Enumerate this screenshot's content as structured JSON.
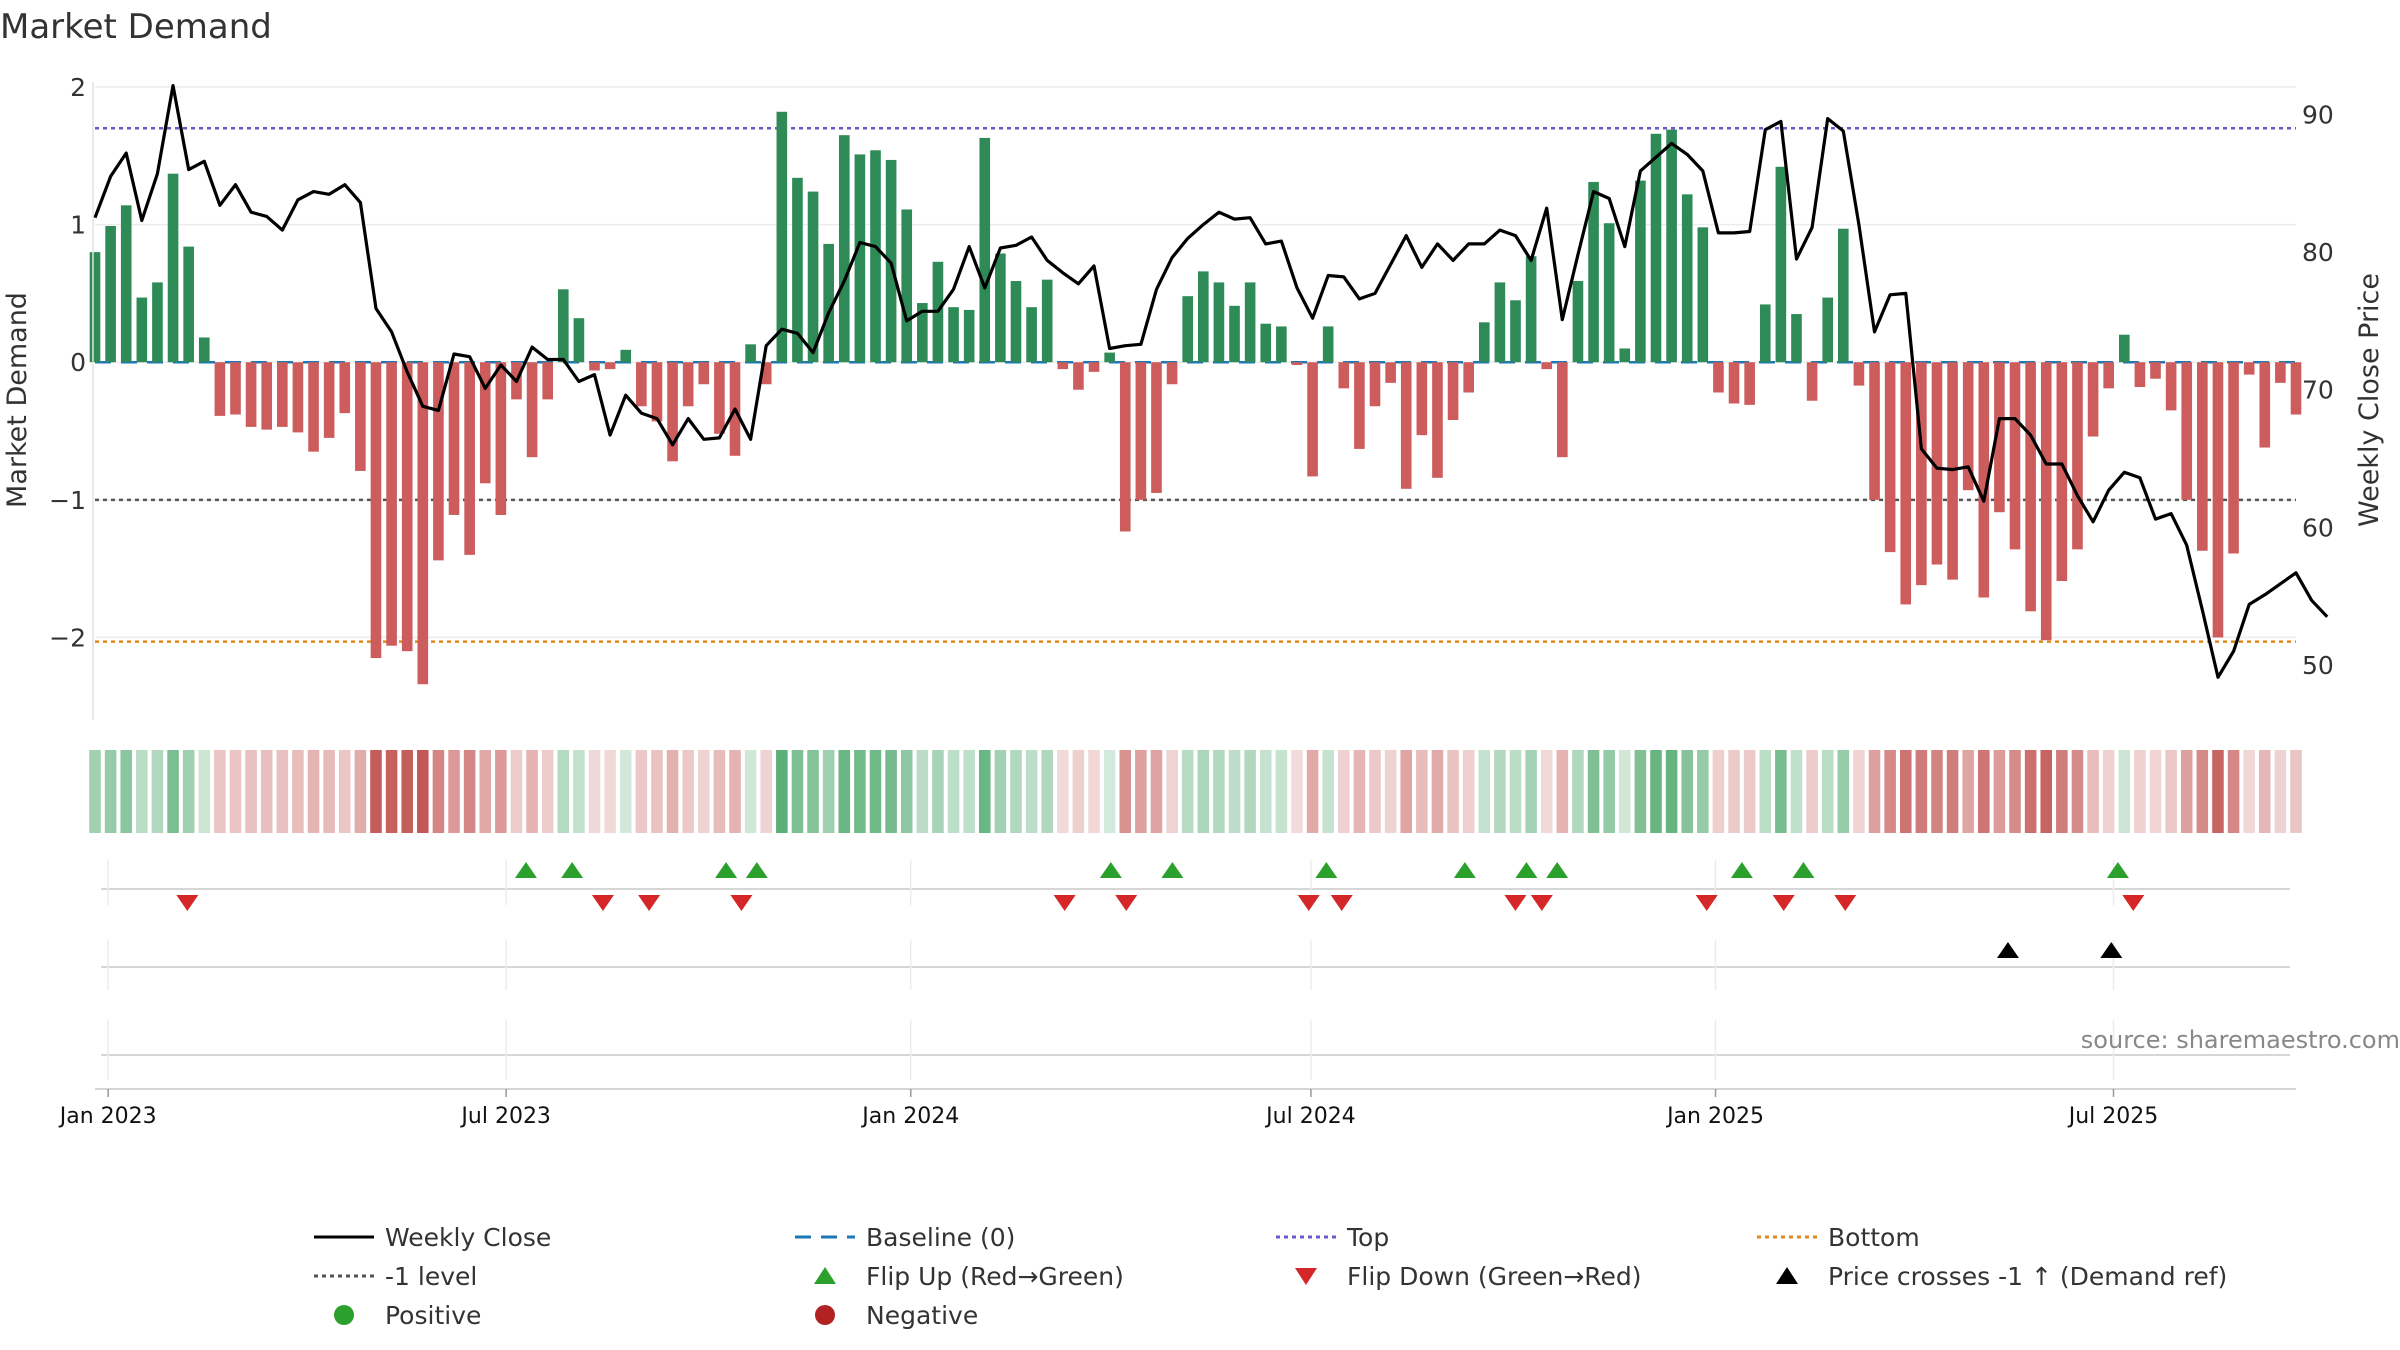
{
  "chart_data": {
    "type": "bar",
    "title": "Market Demand",
    "ylabel_left": "Market Demand",
    "ylabel_right": "Weekly Close Price",
    "ylim_left": [
      -2.6,
      2.0
    ],
    "ylim_right": [
      46,
      92
    ],
    "left_ticks": [
      2,
      1,
      0,
      -1,
      -2
    ],
    "left_tick_labels": [
      "2",
      "1",
      "0",
      "−1",
      "−2"
    ],
    "right_ticks": [
      90,
      80,
      70,
      60,
      50
    ],
    "right_tick_labels": [
      "90",
      "80",
      "70",
      "60",
      "50"
    ],
    "x_start_date": "2022-12-26",
    "x_end_date": "2025-09-22",
    "x_ticks": [
      {
        "date": "2023-01-01",
        "label": "Jan 2023"
      },
      {
        "date": "2023-07-01",
        "label": "Jul 2023"
      },
      {
        "date": "2024-01-01",
        "label": "Jan 2024"
      },
      {
        "date": "2024-07-01",
        "label": "Jul 2024"
      },
      {
        "date": "2025-01-01",
        "label": "Jan 2025"
      },
      {
        "date": "2025-07-01",
        "label": "Jul 2025"
      }
    ],
    "reference_lines": {
      "top": 1.7,
      "level_minus1": -1.0,
      "bottom": -2.03,
      "baseline": 0
    },
    "bars": [
      0.8,
      0.99,
      1.14,
      0.47,
      0.58,
      1.37,
      0.84,
      0.18,
      -0.39,
      -0.38,
      -0.47,
      -0.49,
      -0.47,
      -0.51,
      -0.65,
      -0.55,
      -0.37,
      -0.79,
      -2.15,
      -2.06,
      -2.1,
      -2.34,
      -1.44,
      -1.11,
      -1.4,
      -0.88,
      -1.11,
      -0.27,
      -0.69,
      -0.27,
      0.53,
      0.32,
      -0.06,
      -0.05,
      0.09,
      -0.32,
      -0.43,
      -0.72,
      -0.32,
      -0.16,
      -0.52,
      -0.68,
      0.13,
      -0.16,
      1.82,
      1.34,
      1.24,
      0.86,
      1.65,
      1.51,
      1.54,
      1.47,
      1.11,
      0.43,
      0.73,
      0.4,
      0.38,
      1.63,
      0.79,
      0.59,
      0.4,
      0.6,
      -0.05,
      -0.2,
      -0.07,
      0.07,
      -1.23,
      -1.0,
      -0.95,
      -0.16,
      0.48,
      0.66,
      0.58,
      0.41,
      0.58,
      0.28,
      0.26,
      -0.02,
      -0.83,
      0.26,
      -0.19,
      -0.63,
      -0.32,
      -0.15,
      -0.92,
      -0.53,
      -0.84,
      -0.42,
      -0.22,
      0.29,
      0.58,
      0.45,
      0.77,
      -0.05,
      -0.69,
      0.59,
      1.31,
      1.01,
      0.1,
      1.32,
      1.66,
      1.69,
      1.22,
      0.98,
      -0.22,
      -0.3,
      -0.31,
      0.42,
      1.42,
      0.35,
      -0.28,
      0.47,
      0.97,
      -0.17,
      -1.0,
      -1.38,
      -1.76,
      -1.62,
      -1.47,
      -1.58,
      -0.93,
      -1.71,
      -1.09,
      -1.36,
      -1.81,
      -2.02,
      -1.59,
      -1.36,
      -0.54,
      -0.19,
      0.2,
      -0.18,
      -0.12,
      -0.35,
      -1.0,
      -1.37,
      -2.0,
      -1.39,
      -0.09,
      -0.62,
      -0.15,
      -0.38
    ],
    "close": [
      82.5,
      85.5,
      87.2,
      82.3,
      85.7,
      92.1,
      86.0,
      86.6,
      83.4,
      84.9,
      82.9,
      82.6,
      81.6,
      83.8,
      84.4,
      84.2,
      84.9,
      83.6,
      75.9,
      74.2,
      71.3,
      68.8,
      68.5,
      72.6,
      72.4,
      70.1,
      71.8,
      70.6,
      73.1,
      72.2,
      72.2,
      70.6,
      71.1,
      66.7,
      69.6,
      68.3,
      67.9,
      66.0,
      67.9,
      66.4,
      66.5,
      68.6,
      66.4,
      73.2,
      74.4,
      74.1,
      72.7,
      75.6,
      77.9,
      80.7,
      80.4,
      79.2,
      75.0,
      75.7,
      75.7,
      77.3,
      80.4,
      77.4,
      80.3,
      80.5,
      81.1,
      79.4,
      78.5,
      77.7,
      79.0,
      73.0,
      73.2,
      73.3,
      77.3,
      79.6,
      81.0,
      82.0,
      82.9,
      82.4,
      82.5,
      80.6,
      80.8,
      77.4,
      75.2,
      78.3,
      78.2,
      76.6,
      77.0,
      79.1,
      81.2,
      78.9,
      80.6,
      79.4,
      80.6,
      80.6,
      81.6,
      81.2,
      79.4,
      83.2,
      75.1,
      79.8,
      84.4,
      83.9,
      80.4,
      85.9,
      86.9,
      87.9,
      87.1,
      85.9,
      81.4,
      81.4,
      81.5,
      88.9,
      89.5,
      79.5,
      81.8,
      89.7,
      88.8,
      82.0,
      74.2,
      76.9,
      77.0,
      65.7,
      64.3,
      64.2,
      64.4,
      61.9,
      67.9,
      67.9,
      66.7,
      64.6,
      64.6,
      62.3,
      60.4,
      62.7,
      64.0,
      63.6,
      60.6,
      61.0,
      58.7,
      54.0,
      49.1,
      51.0,
      54.4,
      55.1,
      55.9,
      56.7,
      54.7,
      53.5
    ],
    "flip_up_dates": [
      "2023-07-10",
      "2023-07-31",
      "2023-10-09",
      "2023-10-23",
      "2024-04-01",
      "2024-04-29",
      "2024-07-08",
      "2024-09-09",
      "2024-10-07",
      "2024-10-21",
      "2025-01-13",
      "2025-02-10",
      "2025-07-03"
    ],
    "flip_down_dates": [
      "2023-02-06",
      "2023-08-14",
      "2023-09-04",
      "2023-10-16",
      "2024-03-11",
      "2024-04-08",
      "2024-06-30",
      "2024-07-15",
      "2024-10-02",
      "2024-10-14",
      "2024-12-28",
      "2025-02-01",
      "2025-03-01",
      "2025-07-10"
    ],
    "price_cross_dates": [
      "2025-05-14",
      "2025-06-30"
    ],
    "source_text": "source: sharemaestro.com",
    "legend": {
      "position": "bottom",
      "entries": [
        {
          "label": "Weekly Close",
          "kind": "line",
          "color": "#000000"
        },
        {
          "label": "Baseline (0)",
          "kind": "dash-long",
          "color": "#1f77b4"
        },
        {
          "label": "Top",
          "kind": "dot",
          "color": "#6a5acd"
        },
        {
          "label": "Bottom",
          "kind": "dot",
          "color": "#e08a1e"
        },
        {
          "label": "-1 level",
          "kind": "dot",
          "color": "#555555"
        },
        {
          "label": "Flip Up (Red→Green)",
          "kind": "tri-up",
          "color": "#2ca02c"
        },
        {
          "label": "Flip Down (Green→Red)",
          "kind": "tri-down",
          "color": "#d62728"
        },
        {
          "label": "Price crosses -1 ↑ (Demand ref)",
          "kind": "tri-up",
          "color": "#000000"
        },
        {
          "label": "Positive",
          "kind": "circle",
          "color": "#2ca02c"
        },
        {
          "label": "Negative",
          "kind": "circle",
          "color": "#b22222"
        }
      ]
    }
  },
  "colors": {
    "positive_bar": "#2e8b57",
    "negative_bar": "#cd5c5c",
    "price_line": "#000000",
    "top_line": "#6a5acd",
    "bottom_line": "#e08a1e",
    "level_line": "#555555",
    "baseline": "#1f77b4",
    "flip_up": "#2ca02c",
    "flip_down": "#d62728",
    "cross": "#000000",
    "source": "#888888"
  }
}
